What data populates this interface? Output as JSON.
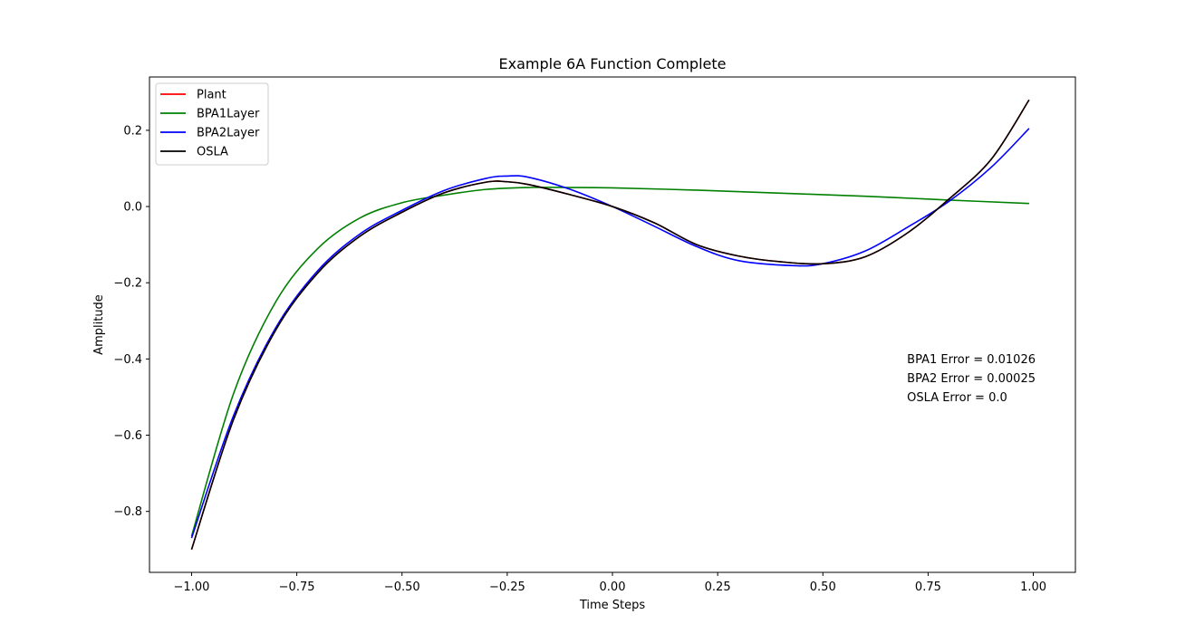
{
  "chart_data": {
    "type": "line",
    "title": "Example 6A Function Complete",
    "xlabel": "Time Steps",
    "ylabel": "Amplitude",
    "xlim": [
      -1.1,
      1.1
    ],
    "ylim": [
      -0.96,
      0.34
    ],
    "x_ticks": [
      -1.0,
      -0.75,
      -0.5,
      -0.25,
      0.0,
      0.25,
      0.5,
      0.75,
      1.0
    ],
    "x_tick_labels": [
      "−1.00",
      "−0.75",
      "−0.50",
      "−0.25",
      "0.00",
      "0.25",
      "0.50",
      "0.75",
      "1.00"
    ],
    "y_ticks": [
      0.2,
      0.0,
      -0.2,
      -0.4,
      -0.6,
      -0.8
    ],
    "y_tick_labels": [
      "0.2",
      "0.0",
      "−0.2",
      "−0.4",
      "−0.6",
      "−0.8"
    ],
    "grid": false,
    "legend_position": "top-left",
    "series": [
      {
        "name": "Plant",
        "color": "#ff0000",
        "x": [
          -1.0,
          -0.9,
          -0.8,
          -0.7,
          -0.6,
          -0.5,
          -0.4,
          -0.3,
          -0.25,
          -0.2,
          -0.1,
          0.0,
          0.1,
          0.2,
          0.3,
          0.4,
          0.5,
          0.6,
          0.7,
          0.8,
          0.9,
          0.99
        ],
        "y": [
          -0.9,
          -0.558,
          -0.324,
          -0.174,
          -0.078,
          -0.015,
          0.036,
          0.064,
          0.065,
          0.058,
          0.031,
          0.0,
          -0.043,
          -0.1,
          -0.13,
          -0.145,
          -0.15,
          -0.132,
          -0.07,
          0.02,
          0.124,
          0.28
        ]
      },
      {
        "name": "BPA1Layer",
        "color": "#008000",
        "x": [
          -1.0,
          -0.9,
          -0.8,
          -0.7,
          -0.6,
          -0.5,
          -0.4,
          -0.3,
          -0.2,
          -0.1,
          0.0,
          0.2,
          0.4,
          0.6,
          0.8,
          0.99
        ],
        "y": [
          -0.865,
          -0.49,
          -0.25,
          -0.11,
          -0.03,
          0.01,
          0.03,
          0.045,
          0.05,
          0.05,
          0.049,
          0.043,
          0.035,
          0.027,
          0.017,
          0.008
        ]
      },
      {
        "name": "BPA2Layer",
        "color": "#0000ff",
        "x": [
          -1.0,
          -0.9,
          -0.8,
          -0.7,
          -0.6,
          -0.5,
          -0.4,
          -0.3,
          -0.25,
          -0.2,
          -0.1,
          0.0,
          0.1,
          0.2,
          0.3,
          0.43,
          0.5,
          0.6,
          0.7,
          0.8,
          0.9,
          0.99
        ],
        "y": [
          -0.87,
          -0.548,
          -0.318,
          -0.168,
          -0.072,
          -0.01,
          0.042,
          0.074,
          0.08,
          0.077,
          0.045,
          0.0,
          -0.052,
          -0.105,
          -0.142,
          -0.155,
          -0.15,
          -0.117,
          -0.055,
          0.014,
          0.103,
          0.205
        ]
      },
      {
        "name": "OSLA",
        "color": "#000000",
        "x": [
          -1.0,
          -0.9,
          -0.8,
          -0.7,
          -0.6,
          -0.5,
          -0.4,
          -0.3,
          -0.25,
          -0.2,
          -0.1,
          0.0,
          0.1,
          0.2,
          0.3,
          0.4,
          0.5,
          0.6,
          0.7,
          0.8,
          0.9,
          0.99
        ],
        "y": [
          -0.9,
          -0.558,
          -0.324,
          -0.174,
          -0.078,
          -0.015,
          0.036,
          0.064,
          0.065,
          0.058,
          0.031,
          0.0,
          -0.043,
          -0.1,
          -0.13,
          -0.145,
          -0.15,
          -0.132,
          -0.07,
          0.02,
          0.124,
          0.28
        ]
      }
    ],
    "annotations": [
      "BPA1 Error = 0.01026",
      "BPA2 Error = 0.00025",
      "OSLA Error = 0.0"
    ]
  }
}
